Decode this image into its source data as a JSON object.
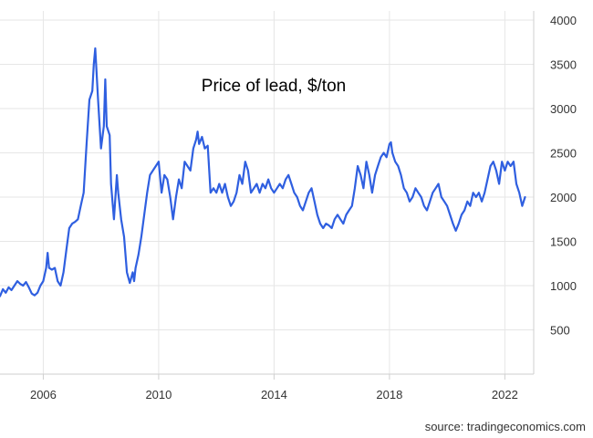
{
  "chart_data": {
    "type": "line",
    "title": "Price of lead, $/ton",
    "xlabel": "",
    "ylabel": "",
    "xlim": [
      2004.5,
      2023.0
    ],
    "ylim": [
      0,
      4000
    ],
    "x_ticks": [
      2006,
      2010,
      2014,
      2018,
      2022
    ],
    "y_ticks": [
      500,
      1000,
      1500,
      2000,
      2500,
      3000,
      3500,
      4000
    ],
    "grid": true,
    "legend": "none",
    "series": [
      {
        "color": "#2f5fe0",
        "points": [
          [
            2004.5,
            880
          ],
          [
            2004.6,
            960
          ],
          [
            2004.7,
            920
          ],
          [
            2004.8,
            980
          ],
          [
            2004.9,
            950
          ],
          [
            2005.0,
            1000
          ],
          [
            2005.1,
            1050
          ],
          [
            2005.2,
            1020
          ],
          [
            2005.3,
            1000
          ],
          [
            2005.4,
            1040
          ],
          [
            2005.5,
            980
          ],
          [
            2005.6,
            910
          ],
          [
            2005.7,
            890
          ],
          [
            2005.8,
            920
          ],
          [
            2005.9,
            1000
          ],
          [
            2006.0,
            1050
          ],
          [
            2006.1,
            1200
          ],
          [
            2006.15,
            1370
          ],
          [
            2006.2,
            1200
          ],
          [
            2006.3,
            1180
          ],
          [
            2006.4,
            1200
          ],
          [
            2006.5,
            1050
          ],
          [
            2006.6,
            1000
          ],
          [
            2006.7,
            1150
          ],
          [
            2006.8,
            1400
          ],
          [
            2006.9,
            1650
          ],
          [
            2007.0,
            1700
          ],
          [
            2007.1,
            1720
          ],
          [
            2007.2,
            1750
          ],
          [
            2007.3,
            1900
          ],
          [
            2007.4,
            2050
          ],
          [
            2007.5,
            2600
          ],
          [
            2007.6,
            3100
          ],
          [
            2007.7,
            3200
          ],
          [
            2007.75,
            3500
          ],
          [
            2007.8,
            3680
          ],
          [
            2007.9,
            3100
          ],
          [
            2008.0,
            2550
          ],
          [
            2008.1,
            2800
          ],
          [
            2008.15,
            3330
          ],
          [
            2008.2,
            2800
          ],
          [
            2008.3,
            2700
          ],
          [
            2008.35,
            2150
          ],
          [
            2008.4,
            1950
          ],
          [
            2008.45,
            1750
          ],
          [
            2008.55,
            2250
          ],
          [
            2008.6,
            2050
          ],
          [
            2008.7,
            1750
          ],
          [
            2008.8,
            1550
          ],
          [
            2008.9,
            1150
          ],
          [
            2009.0,
            1030
          ],
          [
            2009.1,
            1150
          ],
          [
            2009.15,
            1050
          ],
          [
            2009.2,
            1200
          ],
          [
            2009.3,
            1350
          ],
          [
            2009.4,
            1550
          ],
          [
            2009.5,
            1800
          ],
          [
            2009.6,
            2050
          ],
          [
            2009.7,
            2250
          ],
          [
            2009.8,
            2300
          ],
          [
            2009.9,
            2350
          ],
          [
            2010.0,
            2400
          ],
          [
            2010.1,
            2050
          ],
          [
            2010.2,
            2250
          ],
          [
            2010.3,
            2200
          ],
          [
            2010.4,
            2000
          ],
          [
            2010.5,
            1750
          ],
          [
            2010.6,
            2000
          ],
          [
            2010.7,
            2200
          ],
          [
            2010.8,
            2100
          ],
          [
            2010.9,
            2400
          ],
          [
            2011.0,
            2350
          ],
          [
            2011.1,
            2300
          ],
          [
            2011.2,
            2550
          ],
          [
            2011.3,
            2650
          ],
          [
            2011.35,
            2740
          ],
          [
            2011.4,
            2600
          ],
          [
            2011.5,
            2680
          ],
          [
            2011.6,
            2550
          ],
          [
            2011.7,
            2580
          ],
          [
            2011.8,
            2050
          ],
          [
            2011.9,
            2100
          ],
          [
            2012.0,
            2050
          ],
          [
            2012.1,
            2150
          ],
          [
            2012.2,
            2050
          ],
          [
            2012.3,
            2150
          ],
          [
            2012.4,
            2000
          ],
          [
            2012.5,
            1900
          ],
          [
            2012.6,
            1950
          ],
          [
            2012.7,
            2050
          ],
          [
            2012.8,
            2250
          ],
          [
            2012.9,
            2150
          ],
          [
            2013.0,
            2400
          ],
          [
            2013.1,
            2300
          ],
          [
            2013.2,
            2050
          ],
          [
            2013.3,
            2100
          ],
          [
            2013.4,
            2150
          ],
          [
            2013.5,
            2050
          ],
          [
            2013.6,
            2150
          ],
          [
            2013.7,
            2100
          ],
          [
            2013.8,
            2200
          ],
          [
            2013.9,
            2100
          ],
          [
            2014.0,
            2050
          ],
          [
            2014.1,
            2100
          ],
          [
            2014.2,
            2150
          ],
          [
            2014.3,
            2100
          ],
          [
            2014.4,
            2200
          ],
          [
            2014.5,
            2250
          ],
          [
            2014.6,
            2150
          ],
          [
            2014.7,
            2050
          ],
          [
            2014.8,
            2000
          ],
          [
            2014.9,
            1900
          ],
          [
            2015.0,
            1850
          ],
          [
            2015.1,
            1950
          ],
          [
            2015.2,
            2050
          ],
          [
            2015.3,
            2100
          ],
          [
            2015.4,
            1950
          ],
          [
            2015.5,
            1800
          ],
          [
            2015.6,
            1700
          ],
          [
            2015.7,
            1650
          ],
          [
            2015.8,
            1700
          ],
          [
            2015.9,
            1680
          ],
          [
            2016.0,
            1650
          ],
          [
            2016.1,
            1750
          ],
          [
            2016.2,
            1800
          ],
          [
            2016.3,
            1750
          ],
          [
            2016.4,
            1700
          ],
          [
            2016.5,
            1800
          ],
          [
            2016.6,
            1850
          ],
          [
            2016.7,
            1900
          ],
          [
            2016.8,
            2100
          ],
          [
            2016.9,
            2350
          ],
          [
            2017.0,
            2250
          ],
          [
            2017.1,
            2100
          ],
          [
            2017.2,
            2400
          ],
          [
            2017.3,
            2250
          ],
          [
            2017.4,
            2050
          ],
          [
            2017.5,
            2250
          ],
          [
            2017.6,
            2350
          ],
          [
            2017.7,
            2450
          ],
          [
            2017.8,
            2500
          ],
          [
            2017.9,
            2450
          ],
          [
            2018.0,
            2600
          ],
          [
            2018.05,
            2620
          ],
          [
            2018.1,
            2500
          ],
          [
            2018.2,
            2400
          ],
          [
            2018.3,
            2350
          ],
          [
            2018.4,
            2250
          ],
          [
            2018.5,
            2100
          ],
          [
            2018.6,
            2050
          ],
          [
            2018.7,
            1950
          ],
          [
            2018.8,
            2000
          ],
          [
            2018.9,
            2100
          ],
          [
            2019.0,
            2050
          ],
          [
            2019.1,
            2000
          ],
          [
            2019.2,
            1900
          ],
          [
            2019.3,
            1850
          ],
          [
            2019.4,
            1950
          ],
          [
            2019.5,
            2050
          ],
          [
            2019.6,
            2100
          ],
          [
            2019.7,
            2150
          ],
          [
            2019.8,
            2000
          ],
          [
            2019.9,
            1950
          ],
          [
            2020.0,
            1900
          ],
          [
            2020.1,
            1800
          ],
          [
            2020.2,
            1700
          ],
          [
            2020.3,
            1620
          ],
          [
            2020.4,
            1700
          ],
          [
            2020.5,
            1800
          ],
          [
            2020.6,
            1850
          ],
          [
            2020.7,
            1950
          ],
          [
            2020.8,
            1900
          ],
          [
            2020.9,
            2050
          ],
          [
            2021.0,
            2000
          ],
          [
            2021.1,
            2050
          ],
          [
            2021.2,
            1950
          ],
          [
            2021.3,
            2050
          ],
          [
            2021.4,
            2200
          ],
          [
            2021.5,
            2350
          ],
          [
            2021.6,
            2400
          ],
          [
            2021.7,
            2300
          ],
          [
            2021.8,
            2150
          ],
          [
            2021.9,
            2400
          ],
          [
            2022.0,
            2300
          ],
          [
            2022.1,
            2400
          ],
          [
            2022.2,
            2350
          ],
          [
            2022.3,
            2400
          ],
          [
            2022.4,
            2150
          ],
          [
            2022.5,
            2050
          ],
          [
            2022.6,
            1900
          ],
          [
            2022.7,
            2000
          ]
        ]
      }
    ]
  },
  "source": "source: tradingeconomics.com",
  "colors": {
    "line": "#2f5fe0",
    "grid": "#e6e6e6"
  }
}
